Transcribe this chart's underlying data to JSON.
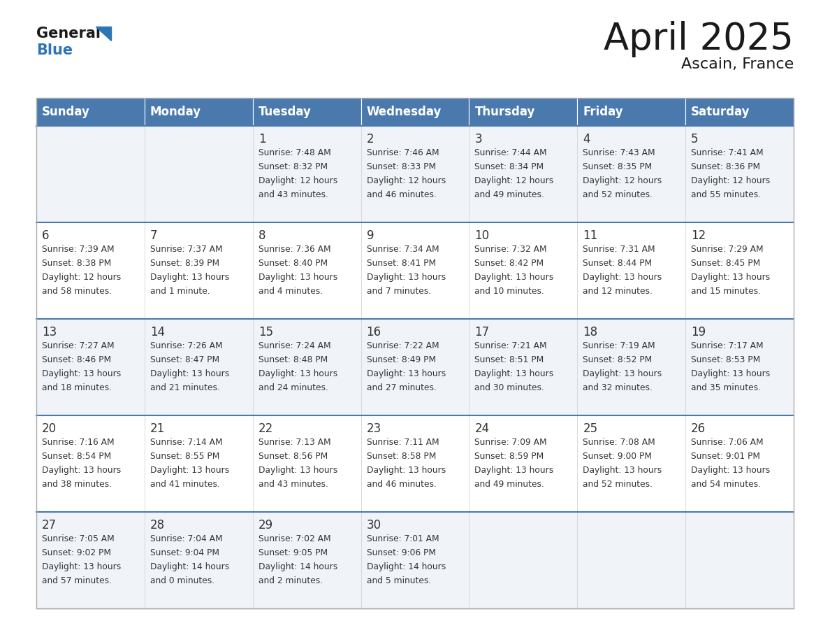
{
  "title": "April 2025",
  "subtitle": "Ascain, France",
  "days_of_week": [
    "Sunday",
    "Monday",
    "Tuesday",
    "Wednesday",
    "Thursday",
    "Friday",
    "Saturday"
  ],
  "header_bg": "#4a7aad",
  "header_text": "#ffffff",
  "cell_bg_light": "#f0f4f8",
  "cell_bg_white": "#ffffff",
  "cell_text": "#333333",
  "separator_color": "#4a7aad",
  "border_color": "#aaaaaa",
  "title_color": "#1a1a1a",
  "logo_general_color": "#1a1a1a",
  "logo_blue_color": "#2e75b6",
  "weeks": [
    {
      "days": [
        {
          "date": "",
          "sunrise": "",
          "sunset": "",
          "daylight": ""
        },
        {
          "date": "",
          "sunrise": "",
          "sunset": "",
          "daylight": ""
        },
        {
          "date": "1",
          "sunrise": "Sunrise: 7:48 AM",
          "sunset": "Sunset: 8:32 PM",
          "daylight": "Daylight: 12 hours\nand 43 minutes."
        },
        {
          "date": "2",
          "sunrise": "Sunrise: 7:46 AM",
          "sunset": "Sunset: 8:33 PM",
          "daylight": "Daylight: 12 hours\nand 46 minutes."
        },
        {
          "date": "3",
          "sunrise": "Sunrise: 7:44 AM",
          "sunset": "Sunset: 8:34 PM",
          "daylight": "Daylight: 12 hours\nand 49 minutes."
        },
        {
          "date": "4",
          "sunrise": "Sunrise: 7:43 AM",
          "sunset": "Sunset: 8:35 PM",
          "daylight": "Daylight: 12 hours\nand 52 minutes."
        },
        {
          "date": "5",
          "sunrise": "Sunrise: 7:41 AM",
          "sunset": "Sunset: 8:36 PM",
          "daylight": "Daylight: 12 hours\nand 55 minutes."
        }
      ]
    },
    {
      "days": [
        {
          "date": "6",
          "sunrise": "Sunrise: 7:39 AM",
          "sunset": "Sunset: 8:38 PM",
          "daylight": "Daylight: 12 hours\nand 58 minutes."
        },
        {
          "date": "7",
          "sunrise": "Sunrise: 7:37 AM",
          "sunset": "Sunset: 8:39 PM",
          "daylight": "Daylight: 13 hours\nand 1 minute."
        },
        {
          "date": "8",
          "sunrise": "Sunrise: 7:36 AM",
          "sunset": "Sunset: 8:40 PM",
          "daylight": "Daylight: 13 hours\nand 4 minutes."
        },
        {
          "date": "9",
          "sunrise": "Sunrise: 7:34 AM",
          "sunset": "Sunset: 8:41 PM",
          "daylight": "Daylight: 13 hours\nand 7 minutes."
        },
        {
          "date": "10",
          "sunrise": "Sunrise: 7:32 AM",
          "sunset": "Sunset: 8:42 PM",
          "daylight": "Daylight: 13 hours\nand 10 minutes."
        },
        {
          "date": "11",
          "sunrise": "Sunrise: 7:31 AM",
          "sunset": "Sunset: 8:44 PM",
          "daylight": "Daylight: 13 hours\nand 12 minutes."
        },
        {
          "date": "12",
          "sunrise": "Sunrise: 7:29 AM",
          "sunset": "Sunset: 8:45 PM",
          "daylight": "Daylight: 13 hours\nand 15 minutes."
        }
      ]
    },
    {
      "days": [
        {
          "date": "13",
          "sunrise": "Sunrise: 7:27 AM",
          "sunset": "Sunset: 8:46 PM",
          "daylight": "Daylight: 13 hours\nand 18 minutes."
        },
        {
          "date": "14",
          "sunrise": "Sunrise: 7:26 AM",
          "sunset": "Sunset: 8:47 PM",
          "daylight": "Daylight: 13 hours\nand 21 minutes."
        },
        {
          "date": "15",
          "sunrise": "Sunrise: 7:24 AM",
          "sunset": "Sunset: 8:48 PM",
          "daylight": "Daylight: 13 hours\nand 24 minutes."
        },
        {
          "date": "16",
          "sunrise": "Sunrise: 7:22 AM",
          "sunset": "Sunset: 8:49 PM",
          "daylight": "Daylight: 13 hours\nand 27 minutes."
        },
        {
          "date": "17",
          "sunrise": "Sunrise: 7:21 AM",
          "sunset": "Sunset: 8:51 PM",
          "daylight": "Daylight: 13 hours\nand 30 minutes."
        },
        {
          "date": "18",
          "sunrise": "Sunrise: 7:19 AM",
          "sunset": "Sunset: 8:52 PM",
          "daylight": "Daylight: 13 hours\nand 32 minutes."
        },
        {
          "date": "19",
          "sunrise": "Sunrise: 7:17 AM",
          "sunset": "Sunset: 8:53 PM",
          "daylight": "Daylight: 13 hours\nand 35 minutes."
        }
      ]
    },
    {
      "days": [
        {
          "date": "20",
          "sunrise": "Sunrise: 7:16 AM",
          "sunset": "Sunset: 8:54 PM",
          "daylight": "Daylight: 13 hours\nand 38 minutes."
        },
        {
          "date": "21",
          "sunrise": "Sunrise: 7:14 AM",
          "sunset": "Sunset: 8:55 PM",
          "daylight": "Daylight: 13 hours\nand 41 minutes."
        },
        {
          "date": "22",
          "sunrise": "Sunrise: 7:13 AM",
          "sunset": "Sunset: 8:56 PM",
          "daylight": "Daylight: 13 hours\nand 43 minutes."
        },
        {
          "date": "23",
          "sunrise": "Sunrise: 7:11 AM",
          "sunset": "Sunset: 8:58 PM",
          "daylight": "Daylight: 13 hours\nand 46 minutes."
        },
        {
          "date": "24",
          "sunrise": "Sunrise: 7:09 AM",
          "sunset": "Sunset: 8:59 PM",
          "daylight": "Daylight: 13 hours\nand 49 minutes."
        },
        {
          "date": "25",
          "sunrise": "Sunrise: 7:08 AM",
          "sunset": "Sunset: 9:00 PM",
          "daylight": "Daylight: 13 hours\nand 52 minutes."
        },
        {
          "date": "26",
          "sunrise": "Sunrise: 7:06 AM",
          "sunset": "Sunset: 9:01 PM",
          "daylight": "Daylight: 13 hours\nand 54 minutes."
        }
      ]
    },
    {
      "days": [
        {
          "date": "27",
          "sunrise": "Sunrise: 7:05 AM",
          "sunset": "Sunset: 9:02 PM",
          "daylight": "Daylight: 13 hours\nand 57 minutes."
        },
        {
          "date": "28",
          "sunrise": "Sunrise: 7:04 AM",
          "sunset": "Sunset: 9:04 PM",
          "daylight": "Daylight: 14 hours\nand 0 minutes."
        },
        {
          "date": "29",
          "sunrise": "Sunrise: 7:02 AM",
          "sunset": "Sunset: 9:05 PM",
          "daylight": "Daylight: 14 hours\nand 2 minutes."
        },
        {
          "date": "30",
          "sunrise": "Sunrise: 7:01 AM",
          "sunset": "Sunset: 9:06 PM",
          "daylight": "Daylight: 14 hours\nand 5 minutes."
        },
        {
          "date": "",
          "sunrise": "",
          "sunset": "",
          "daylight": ""
        },
        {
          "date": "",
          "sunrise": "",
          "sunset": "",
          "daylight": ""
        },
        {
          "date": "",
          "sunrise": "",
          "sunset": "",
          "daylight": ""
        }
      ]
    }
  ]
}
